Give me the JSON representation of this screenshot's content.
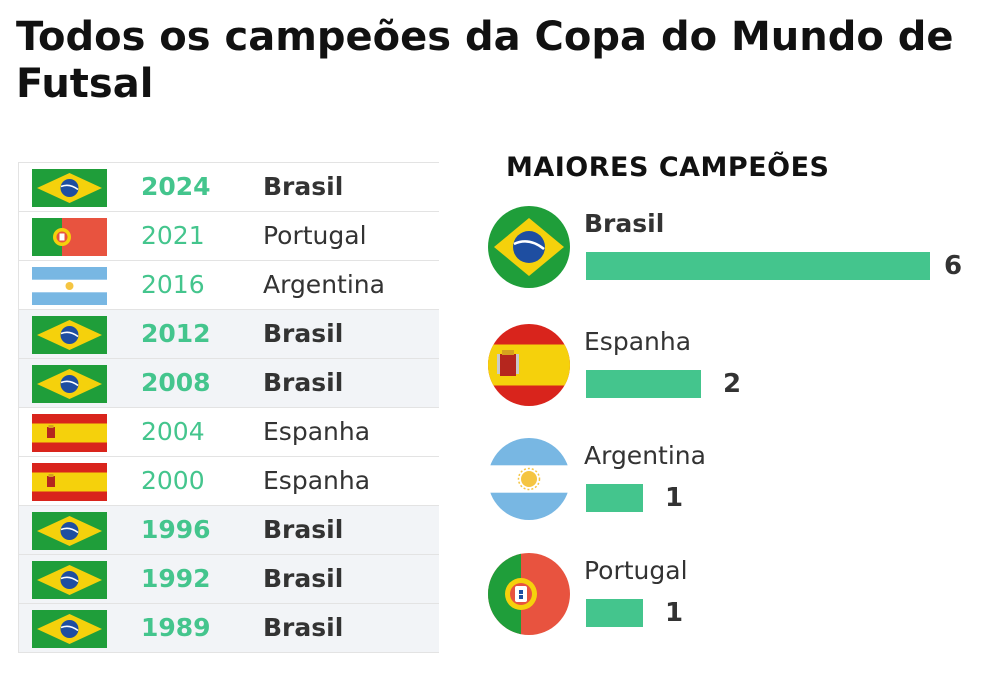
{
  "title": "Todos os campeões da Copa do Mundo de Futsal",
  "colors": {
    "accent": "#44c58d",
    "text": "#333333",
    "row_shade": "#f2f4f7"
  },
  "table": {
    "rows": [
      {
        "flag": "brazil-flag",
        "year": "2024",
        "country": "Brasil",
        "bold": true,
        "shaded": false
      },
      {
        "flag": "portugal-flag",
        "year": "2021",
        "country": "Portugal",
        "bold": false,
        "shaded": false
      },
      {
        "flag": "argentina-flag",
        "year": "2016",
        "country": "Argentina",
        "bold": false,
        "shaded": false
      },
      {
        "flag": "brazil-flag",
        "year": "2012",
        "country": "Brasil",
        "bold": true,
        "shaded": true
      },
      {
        "flag": "brazil-flag",
        "year": "2008",
        "country": "Brasil",
        "bold": true,
        "shaded": true
      },
      {
        "flag": "spain-flag",
        "year": "2004",
        "country": "Espanha",
        "bold": false,
        "shaded": false
      },
      {
        "flag": "spain-flag",
        "year": "2000",
        "country": "Espanha",
        "bold": false,
        "shaded": false
      },
      {
        "flag": "brazil-flag",
        "year": "1996",
        "country": "Brasil",
        "bold": true,
        "shaded": true
      },
      {
        "flag": "brazil-flag",
        "year": "1992",
        "country": "Brasil",
        "bold": true,
        "shaded": true
      },
      {
        "flag": "brazil-flag",
        "year": "1989",
        "country": "Brasil",
        "bold": true,
        "shaded": true
      }
    ]
  },
  "chart_data": {
    "type": "bar",
    "title": "MAIORES CAMPEÕES",
    "categories": [
      "Brasil",
      "Espanha",
      "Argentina",
      "Portugal"
    ],
    "values": [
      6,
      2,
      1,
      1
    ],
    "flags": [
      "brazil-flag",
      "spain-flag",
      "argentina-flag",
      "portugal-flag"
    ],
    "xlabel": "",
    "ylabel": "",
    "xlim": [
      0,
      6
    ]
  }
}
